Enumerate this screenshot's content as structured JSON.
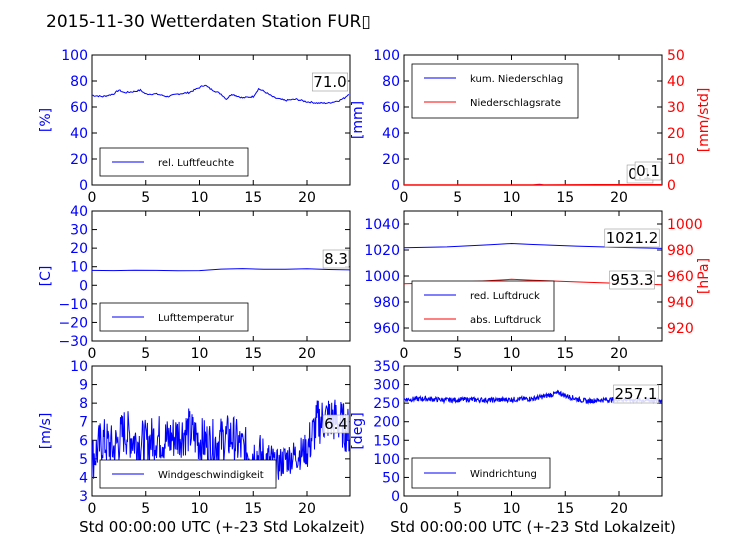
{
  "title": "2015-11-30 Wetterdaten Station FUR▯",
  "xlabel": "Std 00:00:00 UTC (+-23 Std Lokalzeit)",
  "colors": {
    "left_axis": "#0000ff",
    "right_axis": "#ff0000",
    "line_blue": "#0000ff",
    "line_red": "#ff0000"
  },
  "chart_data": [
    {
      "id": "humidity",
      "type": "line",
      "xlim": [
        0,
        24
      ],
      "ylim": [
        0,
        100
      ],
      "xticks": [
        "0",
        "5",
        "10",
        "15",
        "20"
      ],
      "yticks": [
        "0",
        "20",
        "40",
        "60",
        "80",
        "100"
      ],
      "ylabel": "[%]",
      "legend_position": "lower-left",
      "series": [
        {
          "name": "rel. Luftfeuchte",
          "color": "#0000ff",
          "x": [
            0,
            1,
            2,
            2.5,
            3,
            4,
            4.5,
            5,
            6,
            7,
            8,
            9,
            10,
            10.5,
            11,
            12,
            12.5,
            13,
            14,
            15,
            15.5,
            16,
            17,
            18,
            19,
            20,
            21,
            22,
            23,
            23.5,
            24
          ],
          "y": [
            69,
            68,
            70,
            73,
            71,
            72,
            73,
            70,
            70,
            68,
            70,
            71,
            75,
            77,
            74,
            70,
            66,
            70,
            67,
            68,
            74,
            72,
            67,
            65,
            66,
            64,
            63,
            63,
            65,
            67,
            71
          ]
        }
      ],
      "value_label": "71.0"
    },
    {
      "id": "precipitation",
      "type": "line",
      "xlim": [
        0,
        24
      ],
      "ylim": [
        0,
        100
      ],
      "y2lim": [
        0,
        50
      ],
      "xticks": [
        "0",
        "5",
        "10",
        "15",
        "20"
      ],
      "yticks": [
        "0",
        "20",
        "40",
        "60",
        "80",
        "100"
      ],
      "y2ticks": [
        "0",
        "10",
        "20",
        "30",
        "40",
        "50"
      ],
      "ylabel": "[mm]",
      "y2label": "[mm/std]",
      "legend_position": "upper-left",
      "series": [
        {
          "name": "kum. Niederschlag",
          "color": "#0000ff",
          "axis": "left",
          "x": [
            0,
            6,
            12,
            18,
            24
          ],
          "y": [
            0,
            0,
            0,
            0,
            0.1
          ]
        },
        {
          "name": "Niederschlagsrate",
          "color": "#ff0000",
          "axis": "right",
          "x": [
            0,
            6,
            12,
            12.6,
            13,
            18,
            24
          ],
          "y": [
            0.1,
            0.1,
            0.1,
            0.3,
            0.1,
            0.2,
            0.2
          ]
        }
      ],
      "value_labels": [
        "0.1",
        "0.1"
      ]
    },
    {
      "id": "temperature",
      "type": "line",
      "xlim": [
        0,
        24
      ],
      "ylim": [
        -30,
        40
      ],
      "xticks": [
        "0",
        "5",
        "10",
        "15",
        "20"
      ],
      "yticks": [
        "−30",
        "−20",
        "−10",
        "0",
        "10",
        "20",
        "30",
        "40"
      ],
      "ylabel": "[C]",
      "legend_position": "lower-left",
      "series": [
        {
          "name": "Lufttemperatur",
          "color": "#0000ff",
          "x": [
            0,
            2,
            4,
            6,
            8,
            10,
            12,
            14,
            16,
            18,
            20,
            22,
            24
          ],
          "y": [
            8.0,
            7.9,
            8.1,
            8.0,
            7.8,
            7.9,
            8.7,
            9.0,
            8.6,
            8.6,
            8.9,
            8.5,
            8.3
          ]
        }
      ],
      "value_label": "8.3"
    },
    {
      "id": "pressure",
      "type": "line",
      "xlim": [
        0,
        24
      ],
      "ylim": [
        950,
        1050
      ],
      "y2lim": [
        910,
        1010
      ],
      "xticks": [
        "0",
        "5",
        "10",
        "15",
        "20"
      ],
      "yticks": [
        "960",
        "980",
        "1000",
        "1020",
        "1040"
      ],
      "y2ticks": [
        "920",
        "940",
        "960",
        "980",
        "1000"
      ],
      "y2label": "[hPa]",
      "legend_position": "lower-left",
      "series": [
        {
          "name": "red. Luftdruck",
          "color": "#0000ff",
          "axis": "left",
          "x": [
            0,
            4,
            8,
            10,
            12,
            16,
            20,
            24
          ],
          "y": [
            1021.8,
            1022.4,
            1024,
            1025,
            1024.2,
            1023,
            1022,
            1021.2
          ]
        },
        {
          "name": "abs. Luftdruck",
          "color": "#ff0000",
          "axis": "right",
          "x": [
            0,
            4,
            8,
            10,
            12,
            16,
            20,
            24
          ],
          "y": [
            954,
            954.8,
            956.5,
            957.5,
            956.8,
            955.5,
            954.3,
            953.3
          ]
        }
      ],
      "value_labels": [
        "1021.2",
        "953.3"
      ]
    },
    {
      "id": "wind_speed",
      "type": "line",
      "xlim": [
        0,
        24
      ],
      "ylim": [
        3,
        10
      ],
      "xticks": [
        "0",
        "5",
        "10",
        "15",
        "20"
      ],
      "yticks": [
        "3",
        "4",
        "5",
        "6",
        "7",
        "8",
        "9",
        "10"
      ],
      "ylabel": "[m/s]",
      "legend_position": "lower-left",
      "series": [
        {
          "name": "Windgeschwindigkeit",
          "color": "#0000ff",
          "x": [
            0,
            1,
            2,
            3,
            4,
            5,
            6,
            7,
            8,
            9,
            10,
            11,
            12,
            13,
            14,
            15,
            16,
            17,
            18,
            19,
            20,
            21,
            22,
            23,
            24
          ],
          "y": [
            5.0,
            6.0,
            5.5,
            6.5,
            6.0,
            5.8,
            6.2,
            6.0,
            6.3,
            6.5,
            6.0,
            5.8,
            6.0,
            6.2,
            5.5,
            5.3,
            5.0,
            4.5,
            5.0,
            5.2,
            5.5,
            7.0,
            7.2,
            7.0,
            6.4
          ]
        }
      ],
      "value_label": "6.4"
    },
    {
      "id": "wind_direction",
      "type": "line",
      "xlim": [
        0,
        24
      ],
      "ylim": [
        0,
        350
      ],
      "xticks": [
        "0",
        "5",
        "10",
        "15",
        "20"
      ],
      "yticks": [
        "0",
        "50",
        "100",
        "150",
        "200",
        "250",
        "300",
        "350"
      ],
      "ylabel": "[deg]",
      "legend_position": "lower-left",
      "series": [
        {
          "name": "Windrichtung",
          "color": "#0000ff",
          "x": [
            0,
            2,
            4,
            6,
            8,
            10,
            12,
            13,
            14,
            14.5,
            15,
            16,
            17,
            18,
            20,
            22,
            24
          ],
          "y": [
            260,
            262,
            258,
            260,
            258,
            260,
            262,
            268,
            275,
            278,
            270,
            262,
            255,
            258,
            260,
            258,
            257
          ]
        }
      ],
      "value_label": "257.1"
    }
  ]
}
